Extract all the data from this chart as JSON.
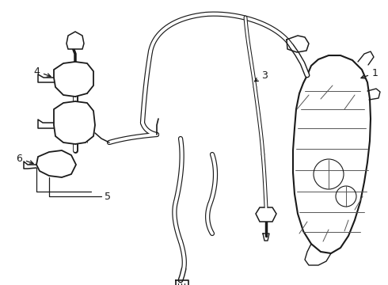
{
  "background_color": "#ffffff",
  "line_color": "#1a1a1a",
  "figsize": [
    4.9,
    3.6
  ],
  "dpi": 100,
  "label_fontsize": 9
}
